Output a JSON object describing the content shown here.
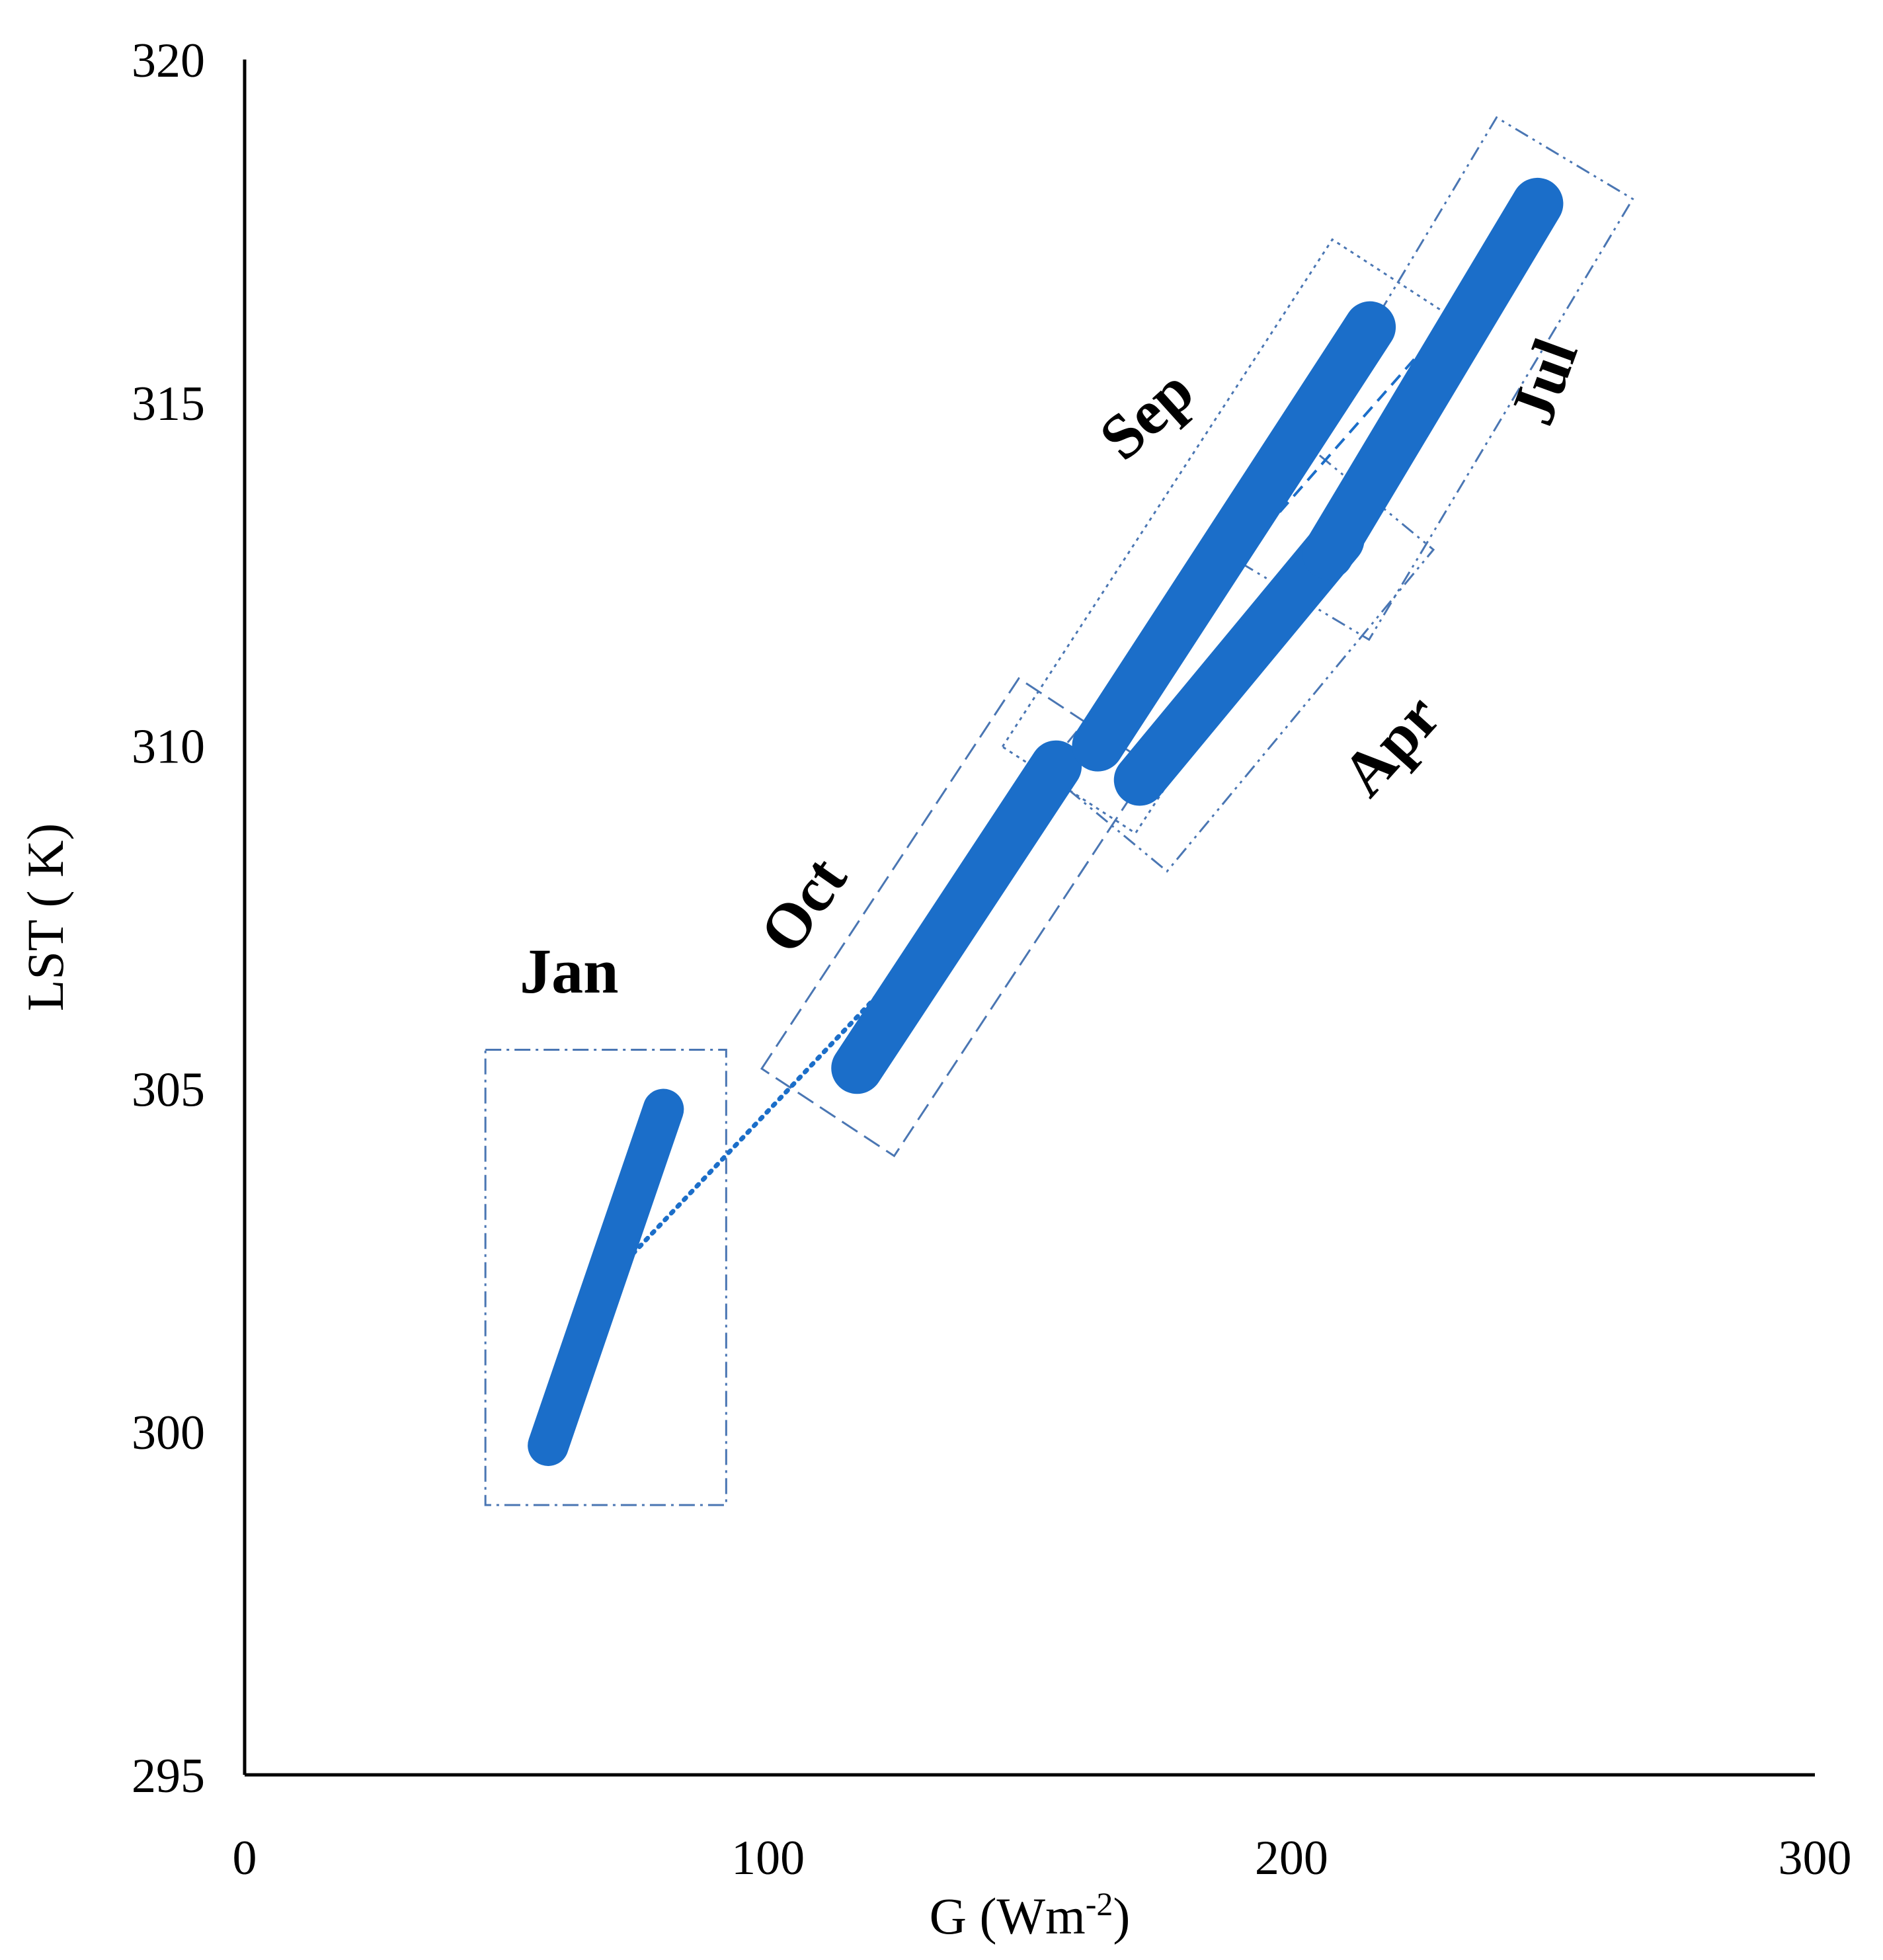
{
  "chart_data": {
    "type": "scatter",
    "xlabel": "G (Wm",
    "xlabel_sup": "-2",
    "xlabel_close": ")",
    "ylabel": "LST ( K)",
    "xlim": [
      0,
      300
    ],
    "ylim": [
      295,
      320
    ],
    "xticks": [
      "0",
      "100",
      "200",
      "300"
    ],
    "yticks": [
      "295",
      "300",
      "305",
      "310",
      "315",
      "320"
    ],
    "grid": false,
    "legend": "none",
    "series_color": "#1b6ec9",
    "box_color": "#4a76b3",
    "series": [
      {
        "name": "Jan",
        "x_range": [
          58,
          80
        ],
        "y_range": [
          299.8,
          304.7
        ]
      },
      {
        "name": "Oct",
        "x_range": [
          117,
          155
        ],
        "y_range": [
          305.3,
          309.7
        ]
      },
      {
        "name": "Apr",
        "x_range": [
          171,
          209
        ],
        "y_range": [
          309.5,
          313.0
        ]
      },
      {
        "name": "Sep",
        "x_range": [
          163,
          215
        ],
        "y_range": [
          310.0,
          316.1
        ]
      },
      {
        "name": "Jul",
        "x_range": [
          207,
          247
        ],
        "y_range": [
          312.8,
          317.9
        ]
      }
    ],
    "annotations": [
      {
        "text": "Jan",
        "x": 62,
        "y": 306.4,
        "rotation": 0
      },
      {
        "text": "Oct",
        "x": 110,
        "y": 307.5,
        "rotation": -55
      },
      {
        "text": "Sep",
        "x": 175,
        "y": 314.6,
        "rotation": -42
      },
      {
        "text": "Apr",
        "x": 222,
        "y": 309.8,
        "rotation": -48
      },
      {
        "text": "Jul",
        "x": 252,
        "y": 315.2,
        "rotation": -70
      }
    ]
  }
}
